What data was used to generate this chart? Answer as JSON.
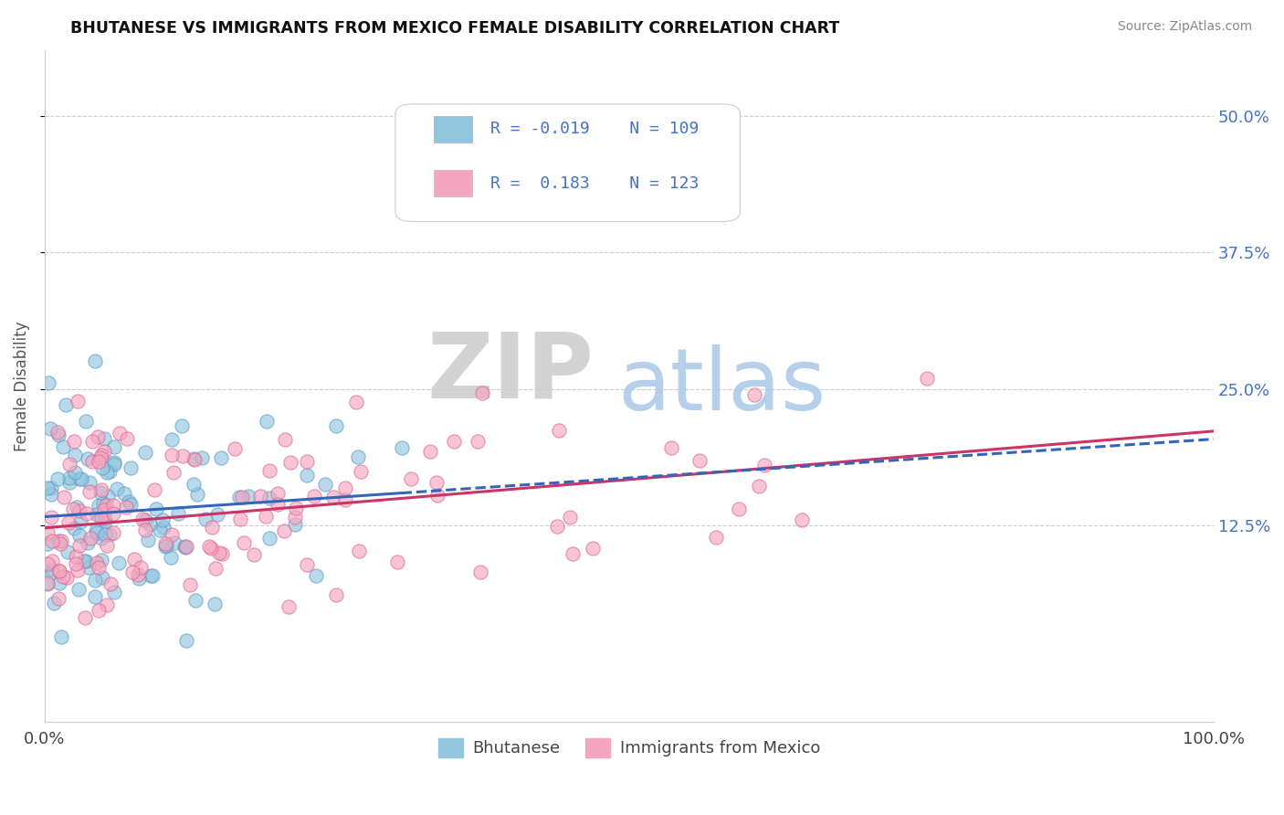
{
  "title": "BHUTANESE VS IMMIGRANTS FROM MEXICO FEMALE DISABILITY CORRELATION CHART",
  "source_text": "Source: ZipAtlas.com",
  "ylabel": "Female Disability",
  "xlim": [
    0.0,
    1.0
  ],
  "ylim": [
    -0.055,
    0.56
  ],
  "ytick_vals": [
    0.125,
    0.25,
    0.375,
    0.5
  ],
  "ytick_labels": [
    "12.5%",
    "25.0%",
    "37.5%",
    "50.0%"
  ],
  "xtick_vals": [
    0.0,
    1.0
  ],
  "xtick_labels": [
    "0.0%",
    "100.0%"
  ],
  "legend_labels": [
    "Bhutanese",
    "Immigrants from Mexico"
  ],
  "R_blue": -0.019,
  "N_blue": 109,
  "R_pink": 0.183,
  "N_pink": 123,
  "blue_color": "#92c5de",
  "pink_color": "#f4a6c0",
  "blue_edge_color": "#5599cc",
  "pink_edge_color": "#e06090",
  "blue_line_color": "#3366bb",
  "pink_line_color": "#cc3366",
  "watermark_zip": "ZIP",
  "watermark_atlas": "atlas",
  "watermark_zip_color": "#cccccc",
  "watermark_atlas_color": "#aac8e8",
  "background_color": "#ffffff",
  "grid_color": "#cccccc",
  "seed_blue": 7,
  "seed_pink": 13
}
